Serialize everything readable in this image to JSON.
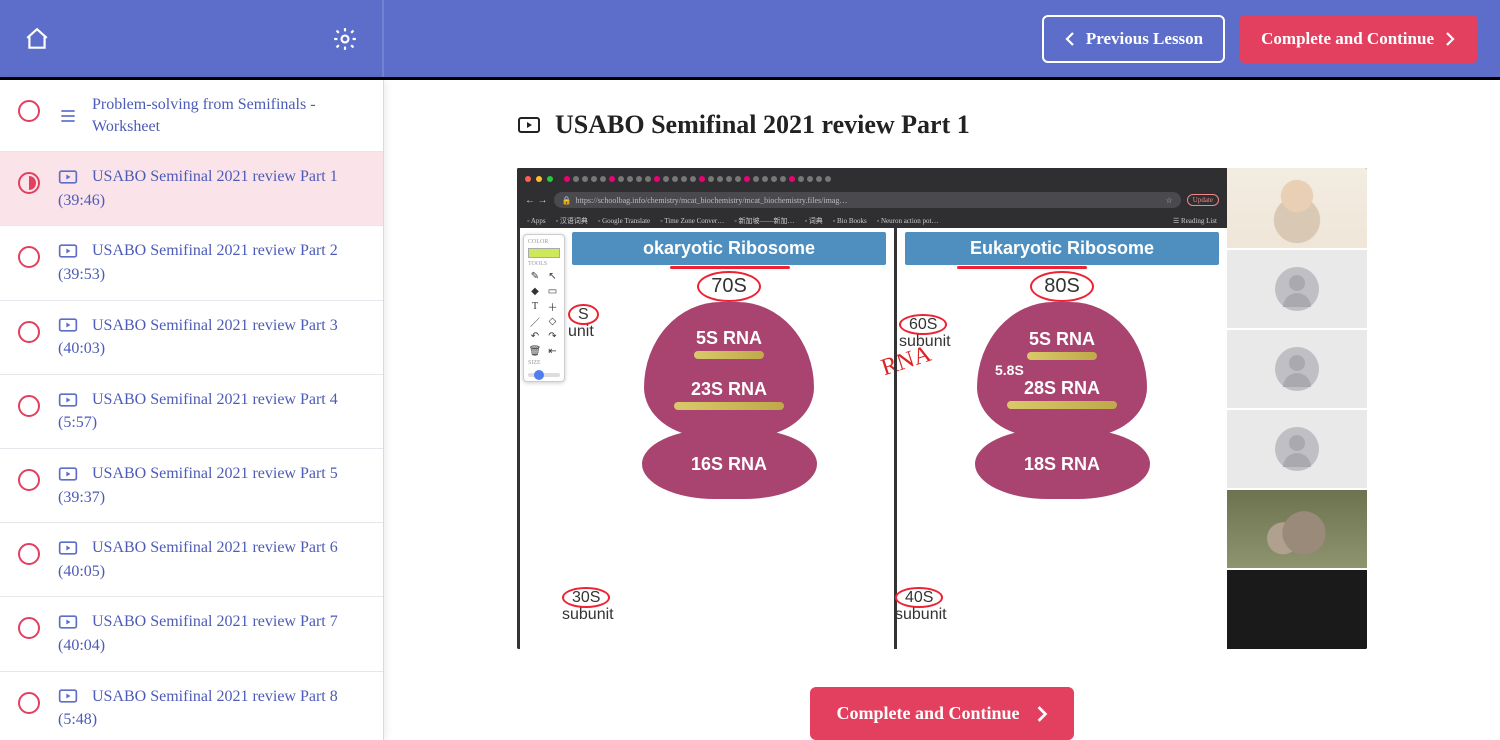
{
  "topbar": {
    "previous_label": "Previous Lesson",
    "complete_label": "Complete and Continue"
  },
  "page": {
    "title": "USABO Semifinal 2021 review Part 1"
  },
  "bottom": {
    "complete_label": "Complete and Continue"
  },
  "sidebar": {
    "items": [
      {
        "icon": "list",
        "title": "Problem-solving from Semifinals - Worksheet",
        "dur": "",
        "status": "empty"
      },
      {
        "icon": "video",
        "title": "USABO Semifinal 2021 review Part 1",
        "dur": "(39:46)",
        "status": "half",
        "active": true
      },
      {
        "icon": "video",
        "title": "USABO Semifinal 2021 review Part 2",
        "dur": "(39:53)",
        "status": "empty"
      },
      {
        "icon": "video",
        "title": "USABO Semifinal 2021 review Part 3",
        "dur": "(40:03)",
        "status": "empty"
      },
      {
        "icon": "video",
        "title": "USABO Semifinal 2021 review Part 4",
        "dur": "(5:57)",
        "status": "empty"
      },
      {
        "icon": "video",
        "title": "USABO Semifinal 2021 review Part 5",
        "dur": "(39:37)",
        "status": "empty"
      },
      {
        "icon": "video",
        "title": "USABO Semifinal 2021 review Part 6",
        "dur": "(40:05)",
        "status": "empty"
      },
      {
        "icon": "video",
        "title": "USABO Semifinal 2021 review Part 7",
        "dur": "(40:04)",
        "status": "empty"
      },
      {
        "icon": "video",
        "title": "USABO Semifinal 2021 review Part 8",
        "dur": "(5:48)",
        "status": "empty"
      }
    ]
  },
  "slide": {
    "url_text": "https://schoolbag.info/chemistry/mcat_biochemistry/mcat_biochemistry.files/imag…",
    "update_label": "Update",
    "bookmarks": [
      "Apps",
      "汉语词典",
      "Google Translate",
      "Time Zone Conver…",
      "新加坡——新加…",
      "词典",
      "Bio Books",
      "Neuron action pot…"
    ],
    "reading_list": "Reading List",
    "left": {
      "title": "okaryotic Ribosome",
      "overall": "70S",
      "top_labels": [
        "5S RNA",
        "23S RNA"
      ],
      "bot_label": "16S RNA",
      "side_top": "S",
      "side_top_sub": "unit",
      "side_bot": "30S",
      "side_bot_sub": "subunit"
    },
    "right": {
      "title": "Eukaryotic Ribosome",
      "overall": "80S",
      "top_labels": [
        "5S RNA",
        "28S RNA"
      ],
      "extra": "5.8S",
      "bot_label": "18S RNA",
      "side_top": "60S",
      "side_top_sub": "subunit",
      "side_bot": "40S",
      "side_bot_sub": "subunit"
    },
    "annotation": "RNA"
  },
  "colors": {
    "brand": "#5c6ec9",
    "danger": "#e3405f",
    "link": "#4c5bb8",
    "panel_header": "#4e8fbf",
    "ribosome": "#a9436f",
    "annotation_red": "#e23"
  }
}
